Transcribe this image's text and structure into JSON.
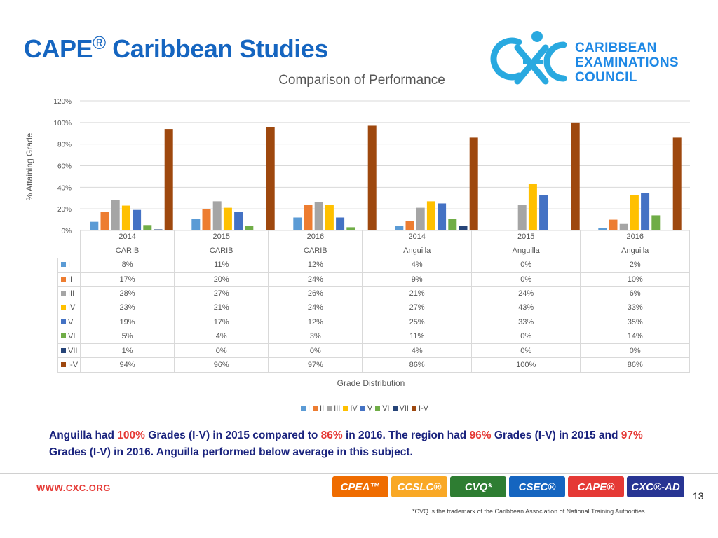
{
  "slide": {
    "title_main": "CAPE",
    "title_mark": "®",
    "title_rest": " Caribbean Studies"
  },
  "logo": {
    "line1": "CARIBBEAN",
    "line2": "EXAMINATIONS",
    "line3": "COUNCIL",
    "color": "#1e88e5"
  },
  "chart_data": {
    "type": "bar",
    "title": "Comparison of Performance",
    "ylabel": "% Attaining Grade",
    "xlabel": "Grade Distribution",
    "ylim": [
      0,
      120
    ],
    "yticks": [
      "0%",
      "20%",
      "40%",
      "60%",
      "80%",
      "100%",
      "120%"
    ],
    "grid": true,
    "legend_position": "bottom",
    "categories": [
      {
        "year": "2014",
        "group": "CARIB"
      },
      {
        "year": "2015",
        "group": "CARIB"
      },
      {
        "year": "2016",
        "group": "CARIB"
      },
      {
        "year": "2014",
        "group": "Anguilla"
      },
      {
        "year": "2015",
        "group": "Anguilla"
      },
      {
        "year": "2016",
        "group": "Anguilla"
      }
    ],
    "series": [
      {
        "name": "I",
        "color": "#5b9bd5",
        "values": [
          8,
          11,
          12,
          4,
          0,
          2
        ],
        "labels": [
          "8%",
          "11%",
          "12%",
          "4%",
          "0%",
          "2%"
        ]
      },
      {
        "name": "II",
        "color": "#ed7d31",
        "values": [
          17,
          20,
          24,
          9,
          0,
          10
        ],
        "labels": [
          "17%",
          "20%",
          "24%",
          "9%",
          "0%",
          "10%"
        ]
      },
      {
        "name": "III",
        "color": "#a5a5a5",
        "values": [
          28,
          27,
          26,
          21,
          24,
          6
        ],
        "labels": [
          "28%",
          "27%",
          "26%",
          "21%",
          "24%",
          "6%"
        ]
      },
      {
        "name": "IV",
        "color": "#ffc000",
        "values": [
          23,
          21,
          24,
          27,
          43,
          33
        ],
        "labels": [
          "23%",
          "21%",
          "24%",
          "27%",
          "43%",
          "33%"
        ]
      },
      {
        "name": "V",
        "color": "#4472c4",
        "values": [
          19,
          17,
          12,
          25,
          33,
          35
        ],
        "labels": [
          "19%",
          "17%",
          "12%",
          "25%",
          "33%",
          "35%"
        ]
      },
      {
        "name": "VI",
        "color": "#70ad47",
        "values": [
          5,
          4,
          3,
          11,
          0,
          14
        ],
        "labels": [
          "5%",
          "4%",
          "3%",
          "11%",
          "0%",
          "14%"
        ]
      },
      {
        "name": "VII",
        "color": "#264478",
        "values": [
          1,
          0,
          0,
          4,
          0,
          0
        ],
        "labels": [
          "1%",
          "0%",
          "0%",
          "4%",
          "0%",
          "0%"
        ]
      },
      {
        "name": "I-V",
        "color": "#9e480e",
        "values": [
          94,
          96,
          97,
          86,
          100,
          86
        ],
        "labels": [
          "94%",
          "96%",
          "97%",
          "86%",
          "100%",
          "86%"
        ]
      }
    ]
  },
  "note": {
    "p1": "Anguilla had ",
    "h1": "100%",
    "p2": " Grades (I-V) in 2015 compared to ",
    "h2": "86%",
    "p3": " in 2016. The region had ",
    "h3": "96%",
    "p4": " Grades (I-V) in 2015 and ",
    "h4": "97%",
    "p5": " Grades (I-V) in 2016. Anguilla performed below average in this subject.",
    "text_color": "#1a237e",
    "highlight_color": "#e53935"
  },
  "footer": {
    "site": "WWW.CXC.ORG",
    "page": "13",
    "trademark_note": "*CVQ is the trademark of the Caribbean Association of National Training Authorities",
    "badges": [
      {
        "label": "CPEA™",
        "color": "#ef6c00"
      },
      {
        "label": "CCSLC®",
        "color": "#f9a825"
      },
      {
        "label": "CVQ*",
        "color": "#2e7d32"
      },
      {
        "label": "CSEC®",
        "color": "#1565c0"
      },
      {
        "label": "CAPE®",
        "color": "#e53935"
      },
      {
        "label": "CXC®-AD",
        "color": "#283593"
      }
    ]
  }
}
